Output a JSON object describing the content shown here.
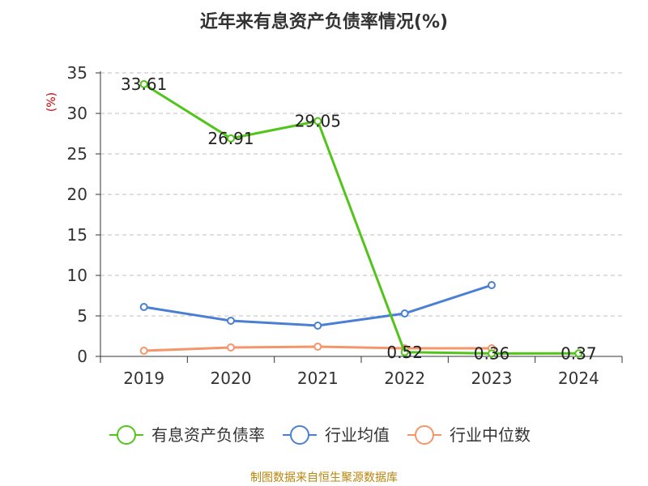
{
  "chart_data": {
    "type": "line",
    "title": "近年来有息资产负债率情况(%)",
    "ylabel": "(%)",
    "xlabel": "",
    "categories": [
      "2019",
      "2020",
      "2021",
      "2022",
      "2023",
      "2024"
    ],
    "ylim": [
      0,
      35
    ],
    "yticks": [
      0,
      5,
      10,
      15,
      20,
      25,
      30,
      35
    ],
    "grid": true,
    "legend_position": "bottom",
    "series": [
      {
        "name": "有息资产负债率",
        "color": "#52c41a",
        "values": [
          33.61,
          26.91,
          29.05,
          0.52,
          0.36,
          0.37
        ],
        "labels": [
          "33.61",
          "26.91",
          "29.05",
          "0.52",
          "0.36",
          "0.37"
        ]
      },
      {
        "name": "行业均值",
        "color": "#4a7fd4",
        "values": [
          6.1,
          4.4,
          3.8,
          5.3,
          8.8,
          null
        ]
      },
      {
        "name": "行业中位数",
        "color": "#f4956a",
        "values": [
          0.7,
          1.1,
          1.2,
          1.0,
          1.0,
          null
        ]
      }
    ]
  },
  "footer": {
    "source": "制图数据来自恒生聚源数据库"
  }
}
